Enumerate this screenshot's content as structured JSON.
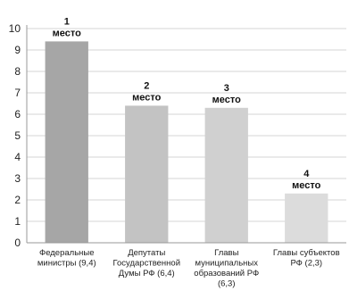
{
  "chart_data": {
    "type": "bar",
    "categories": [
      [
        "Федеральные",
        "министры (9,4)"
      ],
      [
        "Депутаты",
        "Государственной",
        "Думы РФ (6,4)"
      ],
      [
        "Главы",
        "муниципальных",
        "образований РФ",
        "(6,3)"
      ],
      [
        "Главы субъектов",
        "РФ (2,3)"
      ]
    ],
    "values": [
      9.4,
      6.4,
      6.3,
      2.3
    ],
    "annotations": [
      [
        "1",
        "место"
      ],
      [
        "2",
        "место"
      ],
      [
        "3",
        "место"
      ],
      [
        "4",
        "место"
      ]
    ],
    "bar_colors": [
      "#a6a6a6",
      "#c3c3c3",
      "#d0d0d0",
      "#dcdcdc"
    ],
    "ylim": [
      0,
      10
    ],
    "yticks": [
      0,
      1,
      2,
      3,
      4,
      5,
      6,
      7,
      8,
      9,
      10
    ],
    "grid": true
  }
}
